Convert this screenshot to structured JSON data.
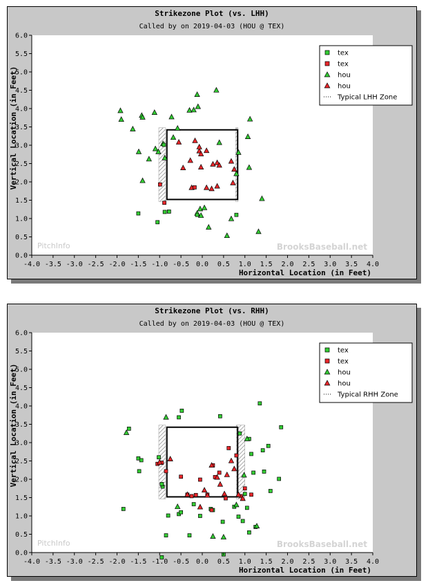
{
  "chart_data": [
    {
      "type": "scatter",
      "title": "Strikezone Plot (vs. LHH)",
      "subtitle": "Called by  on 2019-04-03 (HOU @ TEX)",
      "xlabel": "Horizontal Location (in Feet)",
      "ylabel": "Vertical Location (in Feet)",
      "xlim": [
        -4.0,
        4.0
      ],
      "ylim": [
        0.0,
        6.0
      ],
      "x_ticks": [
        "-4.0",
        "-3.5",
        "-3.0",
        "-2.5",
        "-2.0",
        "-1.5",
        "-1.0",
        "-0.5",
        "0.0",
        "0.5",
        "1.0",
        "1.5",
        "2.0",
        "2.5",
        "3.0",
        "3.5",
        "4.0"
      ],
      "y_ticks": [
        "0.0",
        "0.5",
        "1.0",
        "1.5",
        "2.0",
        "2.5",
        "3.0",
        "3.5",
        "4.0",
        "4.5",
        "5.0",
        "5.5",
        "6.0"
      ],
      "legend_position": "top-right",
      "zone": {
        "label": "Typical LHH Zone",
        "x": [
          -0.83,
          0.83
        ],
        "y": [
          1.52,
          3.42
        ],
        "hatch_left": [
          -1.02,
          -0.86
        ],
        "hatch_right": [
          0.78,
          0.84
        ]
      },
      "watermarks": [
        "PitchInfo",
        "BrooksBaseball.net"
      ],
      "series": [
        {
          "name": "tex",
          "marker": "square",
          "color": "#33cc33",
          "points": []
        },
        {
          "name": "tex",
          "marker": "square",
          "color": "#e8262a",
          "points": []
        },
        {
          "name": "hou",
          "marker": "triangle",
          "color": "#33cc33",
          "points": [
            [
              -1.92,
              3.94
            ],
            [
              -1.9,
              3.7
            ],
            [
              -1.63,
              3.44
            ],
            [
              -1.49,
              2.82
            ],
            [
              -1.42,
              3.81
            ],
            [
              -1.4,
              3.76
            ],
            [
              -1.4,
              2.03
            ],
            [
              -1.25,
              2.62
            ],
            [
              -1.12,
              3.89
            ],
            [
              -1.1,
              2.9
            ],
            [
              -1.03,
              2.82
            ],
            [
              -0.92,
              3.04
            ],
            [
              -0.88,
              2.65
            ],
            [
              -0.72,
              3.77
            ],
            [
              -0.68,
              3.21
            ],
            [
              -0.58,
              3.46
            ],
            [
              -0.3,
              3.95
            ],
            [
              -0.2,
              3.96
            ],
            [
              -0.1,
              4.05
            ],
            [
              -0.12,
              4.38
            ],
            [
              -0.12,
              1.14
            ],
            [
              -0.05,
              1.26
            ],
            [
              -0.03,
              1.08
            ],
            [
              0.05,
              1.29
            ],
            [
              0.15,
              0.76
            ],
            [
              0.33,
              4.5
            ],
            [
              0.4,
              3.07
            ],
            [
              0.58,
              0.53
            ],
            [
              0.68,
              0.99
            ],
            [
              0.8,
              2.22
            ],
            [
              0.85,
              2.8
            ],
            [
              1.07,
              3.23
            ],
            [
              1.1,
              2.39
            ],
            [
              1.12,
              3.71
            ],
            [
              1.32,
              0.64
            ],
            [
              1.4,
              1.54
            ]
          ]
        },
        {
          "name": "hou",
          "marker": "triangle",
          "color": "#e8262a",
          "points": [
            [
              -0.55,
              3.08
            ],
            [
              -0.45,
              2.38
            ],
            [
              -0.28,
              2.58
            ],
            [
              -0.17,
              3.12
            ],
            [
              -0.07,
              2.84
            ],
            [
              -0.03,
              2.76
            ],
            [
              -0.07,
              2.95
            ],
            [
              0.1,
              2.85
            ],
            [
              -0.03,
              2.4
            ],
            [
              0.25,
              2.48
            ],
            [
              0.35,
              2.52
            ],
            [
              0.4,
              2.45
            ],
            [
              0.68,
              2.56
            ],
            [
              0.75,
              2.34
            ],
            [
              0.72,
              1.97
            ],
            [
              0.35,
              1.88
            ],
            [
              0.22,
              1.81
            ],
            [
              0.1,
              1.84
            ],
            [
              -0.25,
              1.84
            ]
          ]
        }
      ],
      "zone_edge_points": [
        {
          "marker": "square",
          "color": "#e8262a",
          "points": [
            [
              -0.99,
              1.93
            ],
            [
              -0.89,
              1.43
            ],
            [
              -0.18,
              1.85
            ]
          ]
        },
        {
          "marker": "square",
          "color": "#33cc33",
          "points": [
            [
              -1.5,
              1.14
            ],
            [
              -1.05,
              0.9
            ],
            [
              -0.88,
              1.18
            ],
            [
              -0.78,
              1.19
            ],
            [
              -0.9,
              3.01
            ],
            [
              0.8,
              1.1
            ],
            [
              -0.12,
              1.1
            ]
          ]
        }
      ]
    },
    {
      "type": "scatter",
      "title": "Strikezone Plot (vs. RHH)",
      "subtitle": "Called by  on 2019-04-03 (HOU @ TEX)",
      "xlabel": "Horizontal Location (in Feet)",
      "ylabel": "Vertical Location (in Feet)",
      "xlim": [
        -4.0,
        4.0
      ],
      "ylim": [
        0.0,
        6.0
      ],
      "x_ticks": [
        "-4.0",
        "-3.5",
        "-3.0",
        "-2.5",
        "-2.0",
        "-1.5",
        "-1.0",
        "-0.5",
        "0.0",
        "0.5",
        "1.0",
        "1.5",
        "2.0",
        "2.5",
        "3.0",
        "3.5",
        "4.0"
      ],
      "y_ticks": [
        "0.0",
        "0.5",
        "1.0",
        "1.5",
        "2.0",
        "2.5",
        "3.0",
        "3.5",
        "4.0",
        "4.5",
        "5.0",
        "5.5",
        "6.0"
      ],
      "legend_position": "top-right",
      "zone": {
        "label": "Typical RHH Zone",
        "x": [
          -0.83,
          0.83
        ],
        "y": [
          1.52,
          3.42
        ],
        "hatch_left": [
          -1.02,
          -0.86
        ],
        "hatch_right": [
          0.8,
          1.0
        ]
      },
      "watermarks": [
        "PitchInfo",
        "BrooksBaseball.net"
      ],
      "series": [
        {
          "name": "tex",
          "marker": "square",
          "color": "#33cc33",
          "points": [
            [
              -1.85,
              1.19
            ],
            [
              -1.72,
              3.38
            ],
            [
              -1.5,
              2.57
            ],
            [
              -1.43,
              2.52
            ],
            [
              -1.48,
              2.22
            ],
            [
              -1.02,
              2.6
            ],
            [
              -0.98,
              2.45
            ],
            [
              -0.93,
              1.8
            ],
            [
              -0.95,
              1.87
            ],
            [
              -0.8,
              1.01
            ],
            [
              -0.85,
              0.47
            ],
            [
              -0.55,
              3.69
            ],
            [
              -0.48,
              3.87
            ],
            [
              -0.55,
              1.05
            ],
            [
              -0.5,
              1.1
            ],
            [
              -0.3,
              0.47
            ],
            [
              -0.2,
              1.32
            ],
            [
              -0.05,
              1.0
            ],
            [
              0.2,
              1.19
            ],
            [
              0.25,
              1.16
            ],
            [
              0.42,
              3.72
            ],
            [
              0.48,
              0.84
            ],
            [
              0.5,
              -0.05
            ],
            [
              0.75,
              1.25
            ],
            [
              0.85,
              0.98
            ],
            [
              0.95,
              0.86
            ],
            [
              1.05,
              1.22
            ],
            [
              1.1,
              0.55
            ],
            [
              1.15,
              2.69
            ],
            [
              1.2,
              2.18
            ],
            [
              1.25,
              0.7
            ],
            [
              1.35,
              4.07
            ],
            [
              1.42,
              2.79
            ],
            [
              1.45,
              2.21
            ],
            [
              1.55,
              2.91
            ],
            [
              1.6,
              1.68
            ],
            [
              1.8,
              2.01
            ],
            [
              1.85,
              3.42
            ],
            [
              -0.95,
              -0.13
            ],
            [
              0.88,
              3.25
            ],
            [
              1.0,
              1.6
            ],
            [
              1.1,
              3.1
            ]
          ]
        },
        {
          "name": "tex",
          "marker": "square",
          "color": "#e8262a",
          "points": [
            [
              -1.05,
              2.42
            ],
            [
              -0.95,
              2.45
            ],
            [
              -0.85,
              2.22
            ],
            [
              -0.5,
              2.07
            ],
            [
              -0.35,
              1.58
            ],
            [
              -0.25,
              1.54
            ],
            [
              -0.15,
              1.57
            ],
            [
              -0.05,
              1.99
            ],
            [
              0.12,
              1.58
            ],
            [
              0.22,
              1.16
            ],
            [
              0.25,
              2.38
            ],
            [
              0.3,
              2.06
            ],
            [
              0.4,
              2.18
            ],
            [
              0.55,
              1.48
            ],
            [
              0.62,
              2.85
            ],
            [
              0.8,
              2.65
            ],
            [
              0.9,
              1.54
            ],
            [
              1.0,
              1.75
            ],
            [
              1.15,
              1.58
            ]
          ]
        },
        {
          "name": "hou",
          "marker": "triangle",
          "color": "#33cc33",
          "points": [
            [
              -1.78,
              3.27
            ],
            [
              -0.85,
              3.69
            ],
            [
              -0.58,
              1.25
            ],
            [
              0.25,
              0.44
            ],
            [
              0.5,
              0.42
            ],
            [
              0.8,
              1.3
            ],
            [
              0.98,
              2.11
            ],
            [
              1.05,
              3.1
            ],
            [
              1.28,
              0.72
            ]
          ]
        },
        {
          "name": "hou",
          "marker": "triangle",
          "color": "#e8262a",
          "points": [
            [
              -1.0,
              2.46
            ],
            [
              -0.75,
              2.55
            ],
            [
              -0.35,
              1.58
            ],
            [
              -0.05,
              1.24
            ],
            [
              0.05,
              1.7
            ],
            [
              0.12,
              1.56
            ],
            [
              0.22,
              2.38
            ],
            [
              0.35,
              2.05
            ],
            [
              0.42,
              1.86
            ],
            [
              0.52,
              1.6
            ],
            [
              0.58,
              2.12
            ],
            [
              0.68,
              2.5
            ],
            [
              0.75,
              2.28
            ],
            [
              0.85,
              1.58
            ],
            [
              0.95,
              1.47
            ]
          ]
        }
      ],
      "zone_edge_points": []
    }
  ],
  "legend": {
    "lhh": [
      "tex",
      "tex",
      "hou",
      "hou",
      "Typical LHH Zone"
    ],
    "rhh": [
      "tex",
      "tex",
      "hou",
      "hou",
      "Typical RHH Zone"
    ]
  }
}
